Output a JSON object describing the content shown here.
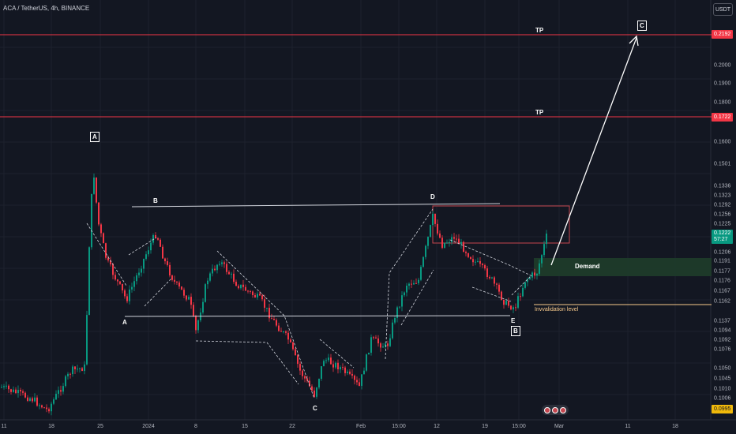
{
  "header": {
    "title": "ACA / TetherUS, 4h, BINANCE",
    "currency_button": "USDT"
  },
  "price_axis": {
    "labels": [
      "0.2000",
      "0.1900",
      "0.1800",
      "0.1600",
      "0.1501",
      "0.1336",
      "0.1323",
      "0.1292",
      "0.1256",
      "0.1225",
      "0.1206",
      "0.1191",
      "0.1177",
      "0.1176",
      "0.1167",
      "0.1162",
      "0.1137",
      "0.1094",
      "0.1092",
      "0.1076",
      "0.1050",
      "0.1045",
      "0.1010",
      "0.1006"
    ],
    "tags": {
      "tp_top": {
        "text": "0.2192",
        "color": "#f23645"
      },
      "tp_mid": {
        "text": "0.1722",
        "color": "#f23645"
      },
      "current": {
        "text": "0.1222",
        "countdown": "57:27",
        "color": "#089981"
      },
      "low": {
        "text": "0.0995",
        "color": "#f0b90b"
      }
    }
  },
  "time_axis": {
    "labels": [
      "11",
      "18",
      "25",
      "2024",
      "8",
      "15",
      "22",
      "Feb",
      "15:00",
      "12",
      "19",
      "15:00",
      "Mar",
      "11",
      "18"
    ]
  },
  "annotations": {
    "tp_top": "TP",
    "tp_mid": "TP",
    "wave_a_top": "A",
    "wave_a_low": "A",
    "wave_b": "B",
    "wave_c_low": "C",
    "wave_d": "D",
    "wave_e": "E",
    "wave_b_boxed": "B",
    "wave_c_target": "C",
    "demand": "Demand",
    "invalidation": "Invvalidation level"
  },
  "colors": {
    "background": "#131722",
    "up": "#089981",
    "down": "#f23645",
    "tp_line": "#f23645",
    "demand_zone": "#1e3b2a",
    "invalidation": "#f7c98b",
    "grid": "#1e222d"
  },
  "icons": {
    "logo": "tradingview-logo-icon"
  }
}
